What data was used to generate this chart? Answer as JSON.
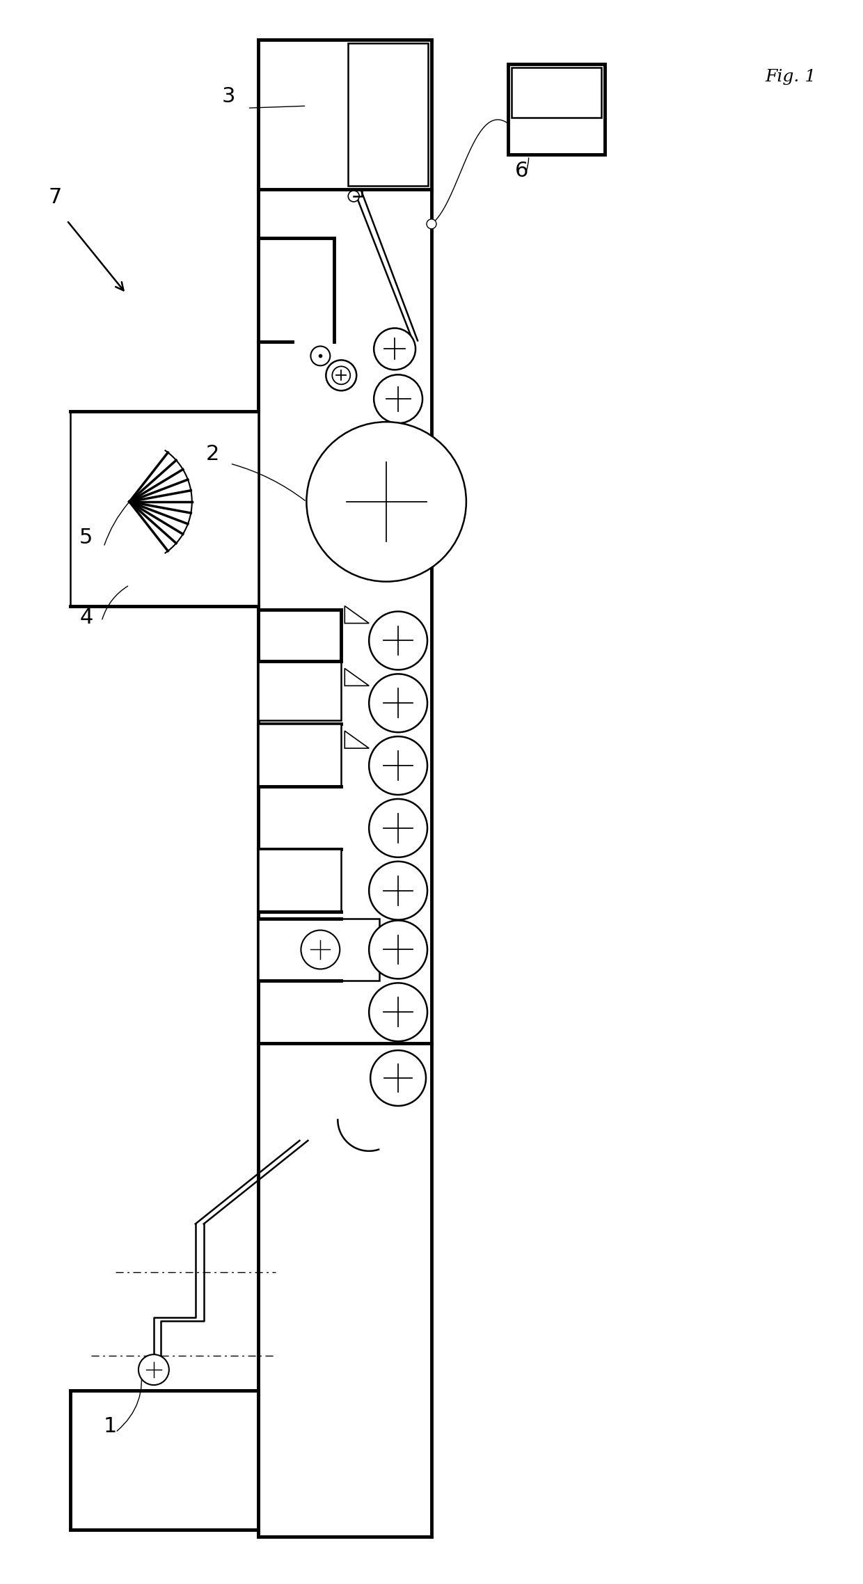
{
  "bg_color": "#ffffff",
  "lc": "#000000",
  "fig_width": 12.4,
  "fig_height": 22.76,
  "fig_label": "Fig. 1",
  "lw_thin": 1.0,
  "lw_med": 1.8,
  "lw_thick": 3.5
}
